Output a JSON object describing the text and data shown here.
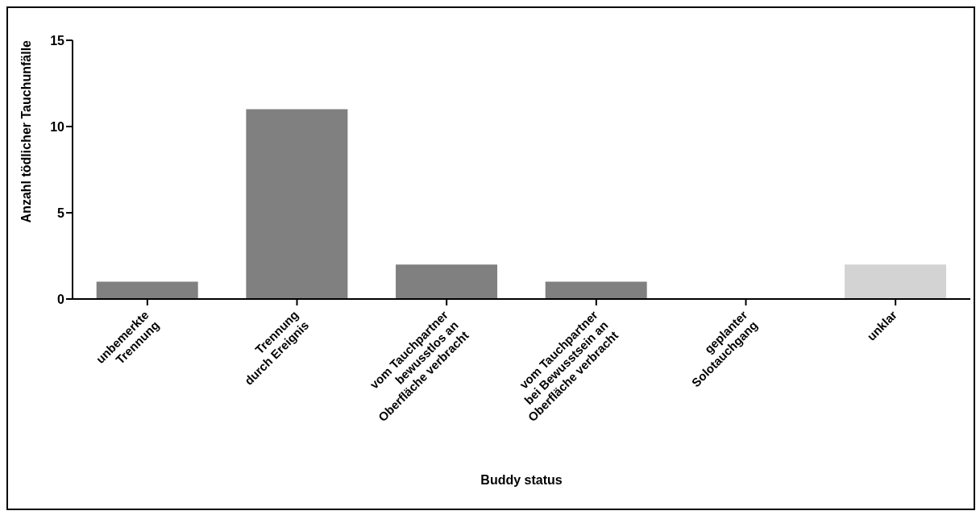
{
  "chart_data": {
    "type": "bar",
    "xlabel": "Buddy status",
    "ylabel": "Anzahl tödlicher Tauchunfälle",
    "categories": [
      "unbemerkte\nTrennung",
      "Trennung\ndurch Ereignis",
      "vom Tauchpartner\nbewusstlos an\nOberfläche verbracht",
      "vom Tauchpartner\nbei Bewusstsein an\nOberfläche verbracht",
      "geplanter\nSolotauchgang",
      "unklar"
    ],
    "values": [
      1,
      11,
      2,
      1,
      0,
      2
    ],
    "colors": [
      "#808080",
      "#808080",
      "#808080",
      "#808080",
      "#808080",
      "#d3d3d3"
    ],
    "ylim": [
      0,
      15
    ],
    "yticks": [
      0,
      5,
      10,
      15
    ],
    "grid": false,
    "legend": false
  }
}
